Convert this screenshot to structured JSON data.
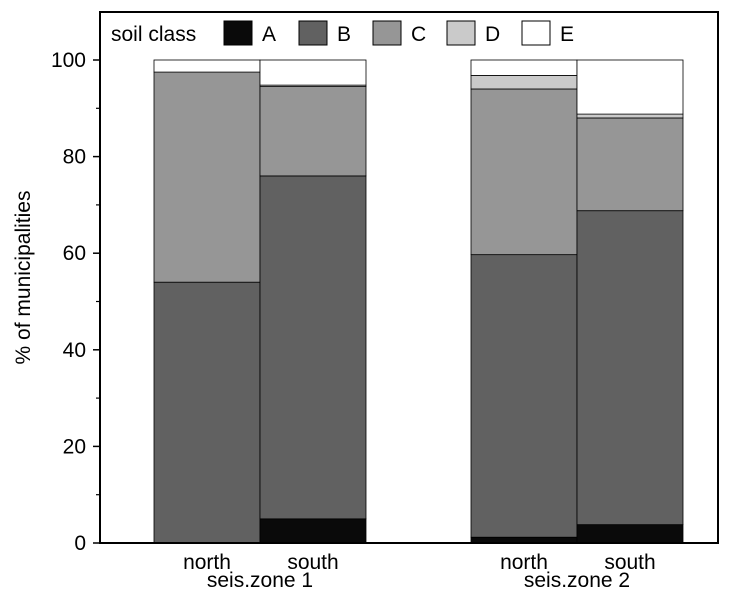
{
  "chart_data": {
    "type": "bar",
    "stacked": true,
    "ylabel": "% of municipalities",
    "ylim": [
      0,
      100
    ],
    "yticks": [
      0,
      20,
      40,
      60,
      80,
      100
    ],
    "legend": {
      "title": "soil class",
      "placement": "top-left",
      "entries": [
        "A",
        "B",
        "C",
        "D",
        "E"
      ]
    },
    "series_colors": {
      "A": "#0a0a0a",
      "B": "#616161",
      "C": "#969696",
      "D": "#cacaca",
      "E": "#ffffff"
    },
    "groups": [
      {
        "label": "seis.zone 1",
        "bars": [
          {
            "label": "north",
            "A": 0,
            "B": 54.0,
            "C": 43.5,
            "D": 0,
            "E": 2.5
          },
          {
            "label": "south",
            "A": 5.0,
            "B": 71.0,
            "C": 18.5,
            "D": 0.3,
            "E": 5.2
          }
        ]
      },
      {
        "label": "seis.zone 2",
        "bars": [
          {
            "label": "north",
            "A": 1.2,
            "B": 58.5,
            "C": 34.3,
            "D": 2.8,
            "E": 3.2
          },
          {
            "label": "south",
            "A": 3.8,
            "B": 65.0,
            "C": 19.2,
            "D": 0.8,
            "E": 11.2
          }
        ]
      }
    ]
  }
}
